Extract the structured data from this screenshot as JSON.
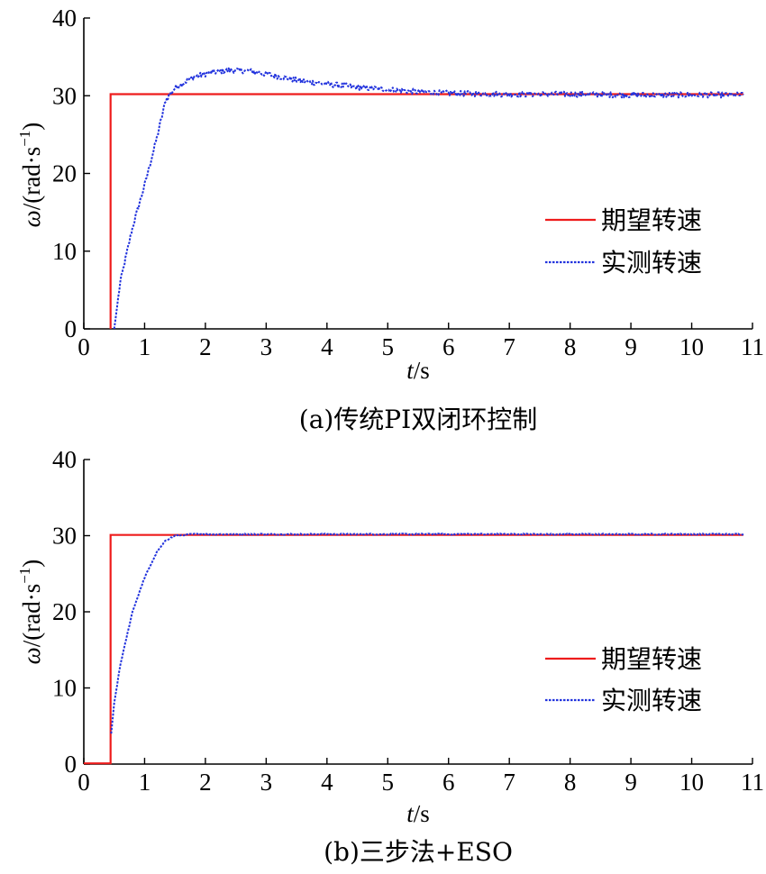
{
  "colors": {
    "desired": "#ee1c1c",
    "measured": "#2233dd",
    "axis": "#000000"
  },
  "chart_data": [
    {
      "type": "line",
      "caption": "(a)传统PI双闭环控制",
      "xlabel_var": "t",
      "xlabel_unit": "/s",
      "ylabel_var": "ω",
      "ylabel_unit": "/(rad·s",
      "ylabel_exp": "−1",
      "ylabel_close": ")",
      "xlim": [
        0,
        11
      ],
      "ylim": [
        0,
        40
      ],
      "xticks": [
        "0",
        "1",
        "2",
        "3",
        "4",
        "5",
        "6",
        "7",
        "8",
        "9",
        "10",
        "11"
      ],
      "yticks": [
        "0",
        "10",
        "20",
        "30",
        "40"
      ],
      "legend_position": "right-middle",
      "series": [
        {
          "name": "期望转速",
          "style": "solid",
          "color": "#ee1c1c",
          "x": [
            0.44,
            0.44,
            10.85
          ],
          "y": [
            0,
            30.2,
            30.2
          ]
        },
        {
          "name": "实测转速",
          "style": "dotted",
          "color": "#2233dd",
          "noise": 0.35,
          "x": [
            0.5,
            0.6,
            0.8,
            1.0,
            1.2,
            1.35,
            1.5,
            1.8,
            2.1,
            2.4,
            2.7,
            3.0,
            3.5,
            4.0,
            4.5,
            5.0,
            5.5,
            6.0,
            7.0,
            8.0,
            9.0,
            10.0,
            10.85
          ],
          "y": [
            0,
            6,
            13,
            18.5,
            24.5,
            29.5,
            31.0,
            32.4,
            33.0,
            33.3,
            33.2,
            32.8,
            32.0,
            31.5,
            31.1,
            30.8,
            30.5,
            30.3,
            30.2,
            30.2,
            30.1,
            30.1,
            30.1
          ]
        }
      ]
    },
    {
      "type": "line",
      "caption": "(b)三步法+ESO",
      "xlabel_var": "t",
      "xlabel_unit": "/s",
      "ylabel_var": "ω",
      "ylabel_unit": "/(rad·s",
      "ylabel_exp": "−1",
      "ylabel_close": ")",
      "xlim": [
        0,
        11
      ],
      "ylim": [
        0,
        40
      ],
      "xticks": [
        "0",
        "1",
        "2",
        "3",
        "4",
        "5",
        "6",
        "7",
        "8",
        "9",
        "10",
        "11"
      ],
      "yticks": [
        "0",
        "10",
        "20",
        "30",
        "40"
      ],
      "legend_position": "right-middle",
      "series": [
        {
          "name": "期望转速",
          "style": "solid",
          "color": "#ee1c1c",
          "x": [
            0.0,
            0.44,
            0.44,
            10.85
          ],
          "y": [
            0.1,
            0.1,
            30.1,
            30.1
          ]
        },
        {
          "name": "实测转速",
          "style": "dotted",
          "color": "#2233dd",
          "noise": 0.08,
          "x": [
            0.45,
            0.5,
            0.6,
            0.8,
            1.0,
            1.2,
            1.35,
            1.5,
            1.8,
            2.5,
            4.0,
            6.0,
            8.0,
            10.0,
            10.85
          ],
          "y": [
            4.0,
            8.0,
            13.0,
            20.0,
            24.5,
            27.8,
            29.4,
            30.0,
            30.2,
            30.2,
            30.2,
            30.2,
            30.2,
            30.2,
            30.2
          ]
        }
      ]
    }
  ]
}
